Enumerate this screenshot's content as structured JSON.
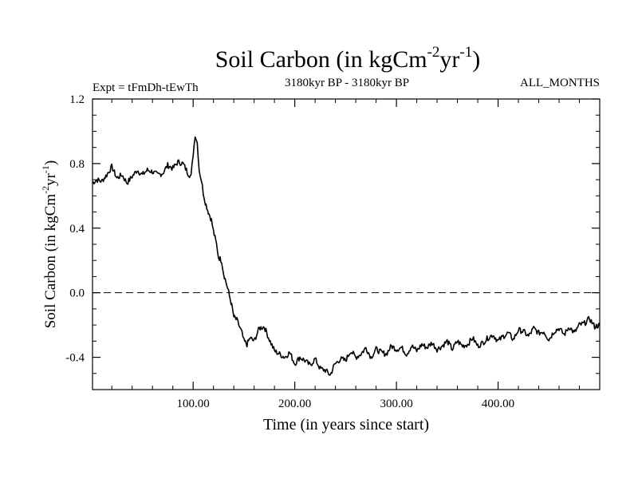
{
  "chart_data": {
    "type": "line",
    "title": "Soil Carbon (in kgCm",
    "title_sup1": "-2",
    "title_mid": "yr",
    "title_sup2": "-1",
    "title_end": ")",
    "subtitle_left": "Expt = tFmDh-tEwTh",
    "subtitle_center": "3180kyr BP - 3180kyr BP",
    "subtitle_right": "ALL_MONTHS",
    "xlabel": "Time (in years since start)",
    "ylabel_main": "Soil Carbon (in kgCm",
    "ylabel_sup1": "-2",
    "ylabel_mid": "yr",
    "ylabel_sup2": "-1",
    "ylabel_end": ")",
    "xlim": [
      1,
      500
    ],
    "ylim": [
      -0.6,
      1.2
    ],
    "xticks": [
      100,
      200,
      300,
      400
    ],
    "xtick_labels": [
      "100.00",
      "200.00",
      "300.00",
      "400.00"
    ],
    "yticks": [
      -0.4,
      0.0,
      0.4,
      0.8,
      1.2
    ],
    "ytick_labels": [
      "-0.4",
      "0.0",
      "0.4",
      "0.8",
      "1.2"
    ],
    "zero_line": 0.0,
    "series": [
      {
        "name": "Soil Carbon",
        "x": [
          1,
          5,
          10,
          15,
          20,
          25,
          30,
          35,
          40,
          45,
          50,
          55,
          60,
          65,
          70,
          75,
          80,
          85,
          90,
          95,
          98,
          100,
          102,
          104,
          106,
          108,
          110,
          112,
          115,
          118,
          120,
          123,
          125,
          128,
          130,
          133,
          135,
          138,
          140,
          143,
          145,
          148,
          150,
          153,
          156,
          160,
          165,
          170,
          175,
          180,
          185,
          190,
          195,
          200,
          205,
          210,
          215,
          220,
          225,
          230,
          235,
          238,
          240,
          245,
          250,
          255,
          260,
          265,
          270,
          275,
          280,
          285,
          290,
          295,
          300,
          305,
          310,
          315,
          320,
          325,
          330,
          335,
          340,
          345,
          350,
          355,
          360,
          365,
          370,
          375,
          380,
          385,
          390,
          395,
          400,
          405,
          410,
          415,
          420,
          425,
          430,
          435,
          440,
          445,
          450,
          455,
          460,
          465,
          470,
          475,
          480,
          485,
          490,
          495,
          500
        ],
        "values": [
          0.68,
          0.7,
          0.69,
          0.73,
          0.78,
          0.71,
          0.73,
          0.68,
          0.72,
          0.76,
          0.73,
          0.76,
          0.75,
          0.73,
          0.74,
          0.79,
          0.77,
          0.81,
          0.8,
          0.74,
          0.72,
          0.86,
          0.98,
          0.93,
          0.76,
          0.7,
          0.62,
          0.56,
          0.5,
          0.45,
          0.38,
          0.3,
          0.22,
          0.2,
          0.12,
          0.05,
          0.0,
          -0.08,
          -0.15,
          -0.17,
          -0.2,
          -0.25,
          -0.3,
          -0.32,
          -0.28,
          -0.3,
          -0.22,
          -0.21,
          -0.29,
          -0.36,
          -0.38,
          -0.4,
          -0.37,
          -0.44,
          -0.4,
          -0.42,
          -0.45,
          -0.41,
          -0.47,
          -0.48,
          -0.51,
          -0.46,
          -0.44,
          -0.41,
          -0.42,
          -0.36,
          -0.4,
          -0.38,
          -0.34,
          -0.4,
          -0.35,
          -0.37,
          -0.38,
          -0.33,
          -0.35,
          -0.34,
          -0.38,
          -0.33,
          -0.36,
          -0.32,
          -0.34,
          -0.31,
          -0.35,
          -0.33,
          -0.3,
          -0.35,
          -0.3,
          -0.33,
          -0.32,
          -0.28,
          -0.33,
          -0.31,
          -0.28,
          -0.26,
          -0.3,
          -0.27,
          -0.25,
          -0.29,
          -0.23,
          -0.24,
          -0.27,
          -0.22,
          -0.25,
          -0.24,
          -0.29,
          -0.24,
          -0.22,
          -0.26,
          -0.21,
          -0.25,
          -0.2,
          -0.19,
          -0.16,
          -0.21,
          -0.2
        ]
      }
    ]
  }
}
